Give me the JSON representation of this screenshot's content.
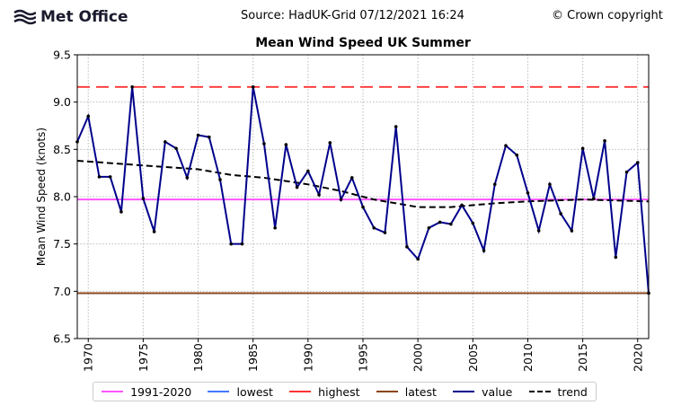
{
  "header": {
    "logo_text": "Met Office",
    "source": "Source: HadUK-Grid 07/12/2021 16:24",
    "copyright": "© Crown copyright"
  },
  "chart_data": {
    "type": "line",
    "title": "Mean Wind Speed UK Summer",
    "xlabel": "",
    "ylabel": "Mean Wind Speed (knots)",
    "xlim": [
      1969,
      2021
    ],
    "ylim": [
      6.5,
      9.5
    ],
    "xticks": [
      1970,
      1975,
      1980,
      1985,
      1990,
      1995,
      2000,
      2005,
      2010,
      2015,
      2020
    ],
    "yticks": [
      "6.5",
      "7.0",
      "7.5",
      "8.0",
      "8.5",
      "9.0",
      "9.5"
    ],
    "grid": true,
    "legend_position": "bottom",
    "x": [
      1969,
      1970,
      1971,
      1972,
      1973,
      1974,
      1975,
      1976,
      1977,
      1978,
      1979,
      1980,
      1981,
      1982,
      1983,
      1984,
      1985,
      1986,
      1987,
      1988,
      1989,
      1990,
      1991,
      1992,
      1993,
      1994,
      1995,
      1996,
      1997,
      1998,
      1999,
      2000,
      2001,
      2002,
      2003,
      2004,
      2005,
      2006,
      2007,
      2008,
      2009,
      2010,
      2011,
      2012,
      2013,
      2014,
      2015,
      2016,
      2017,
      2018,
      2019,
      2020,
      2021
    ],
    "series": [
      {
        "name": "value",
        "color": "#00008b",
        "values": [
          8.58,
          8.85,
          8.21,
          8.21,
          7.84,
          9.16,
          7.98,
          7.63,
          8.58,
          8.51,
          8.2,
          8.65,
          8.63,
          8.18,
          7.5,
          7.5,
          9.16,
          8.56,
          7.67,
          8.55,
          8.1,
          8.27,
          8.02,
          8.57,
          7.97,
          8.2,
          7.89,
          7.67,
          7.62,
          8.74,
          7.47,
          7.34,
          7.67,
          7.73,
          7.71,
          7.91,
          7.72,
          7.43,
          8.13,
          8.54,
          8.44,
          8.04,
          7.64,
          8.13,
          7.82,
          7.64,
          8.51,
          7.98,
          8.59,
          7.36,
          8.26,
          8.36,
          6.98
        ]
      },
      {
        "name": "trend",
        "color": "#000000",
        "x": [
          1969,
          1975,
          1980,
          1983,
          1986,
          1990,
          1993,
          1996,
          2000,
          2003,
          2007,
          2010,
          2015,
          2018,
          2021
        ],
        "values": [
          8.38,
          8.33,
          8.29,
          8.23,
          8.2,
          8.13,
          8.06,
          7.97,
          7.89,
          7.89,
          7.93,
          7.95,
          7.97,
          7.96,
          7.95
        ]
      }
    ],
    "reference_lines": [
      {
        "name": "1991-2020",
        "value": 7.97,
        "color": "#ff55ff",
        "style": "solid"
      },
      {
        "name": "lowest",
        "value": 6.98,
        "color": "#4477ff",
        "style": "solid"
      },
      {
        "name": "highest",
        "value": 9.16,
        "color": "#ff3333",
        "style": "dashed"
      },
      {
        "name": "latest",
        "value": 6.98,
        "color": "#8b4513",
        "style": "solid"
      }
    ],
    "legend": [
      "1991-2020",
      "lowest",
      "highest",
      "latest",
      "value",
      "trend"
    ]
  }
}
